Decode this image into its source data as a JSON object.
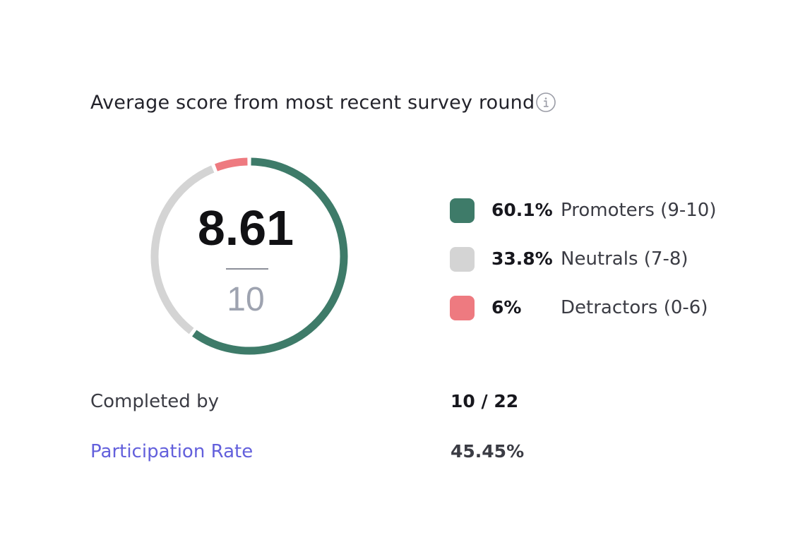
{
  "card": {
    "title": "Average score from most recent survey round",
    "info_icon": "info-icon"
  },
  "score": {
    "value": "8.61",
    "max": "10"
  },
  "chart_data": {
    "type": "pie",
    "categories": [
      "Promoters (9-10)",
      "Neutrals (7-8)",
      "Detractors (0-6)"
    ],
    "values": [
      60.1,
      33.8,
      6
    ],
    "colors": [
      "#3e7b69",
      "#d4d4d4",
      "#ee7a80"
    ],
    "title": ""
  },
  "legend": [
    {
      "percent": "60.1%",
      "label": "Promoters (9-10)",
      "color": "#3e7b69"
    },
    {
      "percent": "33.8%",
      "label": "Neutrals (7-8)",
      "color": "#d4d4d4"
    },
    {
      "percent": "6%",
      "label": "Detractors (0-6)",
      "color": "#ee7a80"
    }
  ],
  "stats": {
    "completed_label": "Completed by",
    "completed_value": "10 / 22",
    "participation_label": "Participation Rate",
    "participation_value": "45.45%"
  },
  "colors": {
    "link": "#6360dc",
    "text": "#23232b"
  }
}
